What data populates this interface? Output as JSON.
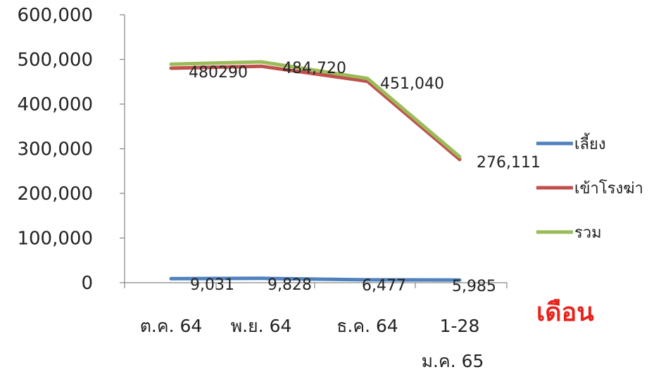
{
  "chart_data": {
    "type": "line",
    "categories": [
      "ต.ค. 64",
      "พ.ย. 64",
      "ธ.ค. 64",
      "1-28|ม.ค. 65"
    ],
    "xlabel": "เดือน",
    "ylabel": "",
    "ylim": [
      0,
      600000
    ],
    "yticks": [
      0,
      100000,
      200000,
      300000,
      400000,
      500000,
      600000
    ],
    "ytick_labels": [
      "0",
      "100,000",
      "200,000",
      "300,000",
      "400,000",
      "500,000",
      "600,000"
    ],
    "grid": false,
    "legend_position": "right",
    "series": [
      {
        "name": "เลี้ยง",
        "color": "#4f81bd",
        "values": [
          9031,
          9828,
          6477,
          5985
        ],
        "labels": [
          "9,031",
          "9,828",
          "6,477",
          "5,985"
        ]
      },
      {
        "name": "เข้าโรงฆ่า",
        "color": "#c0504d",
        "values": [
          480290,
          484720,
          451040,
          276111
        ],
        "labels": [
          "480290",
          "484,720",
          "451,040",
          "276,111"
        ]
      },
      {
        "name": "รวม",
        "color": "#9bbb59",
        "values": [
          489321,
          494548,
          457517,
          282096
        ],
        "labels": [
          "",
          "",
          "",
          ""
        ]
      }
    ]
  },
  "colors": {
    "xlabel": "#e8231c",
    "axis": "#868686"
  }
}
